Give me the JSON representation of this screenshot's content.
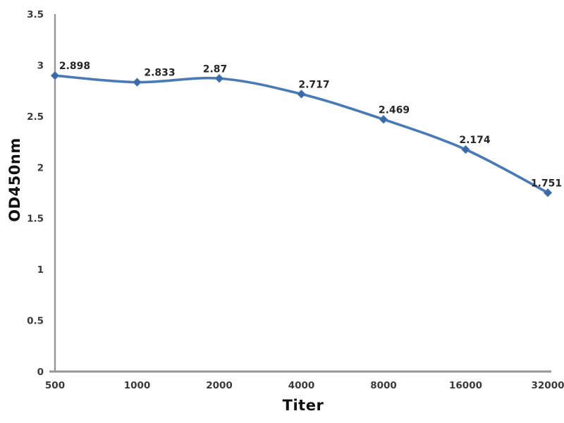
{
  "chart_data": {
    "type": "line",
    "xlabel": "Titer",
    "ylabel": "OD450nm",
    "categories": [
      "500",
      "1000",
      "2000",
      "4000",
      "8000",
      "16000",
      "32000"
    ],
    "series": [
      {
        "name": "OD450nm",
        "values": [
          2.898,
          2.833,
          2.87,
          2.717,
          2.469,
          2.174,
          1.751
        ]
      }
    ],
    "point_labels": [
      "2.898",
      "2.833",
      "2.87",
      "2.717",
      "2.469",
      "2.174",
      "1.751"
    ],
    "ylim": [
      0,
      3.5
    ],
    "yticks": [
      "0",
      "0.5",
      "1",
      "1.5",
      "2",
      "2.5",
      "3",
      "3.5"
    ],
    "grid": false,
    "legend_position": "none",
    "marker": "diamond",
    "line_smooth": true,
    "colors": {
      "line": "#4A7AB5",
      "marker": "#3B69A8",
      "axis": "#969696",
      "tick_label": "#3A3A3A",
      "data_label": "#262626",
      "axis_title": "#111111",
      "background": "#FFFFFF"
    }
  }
}
